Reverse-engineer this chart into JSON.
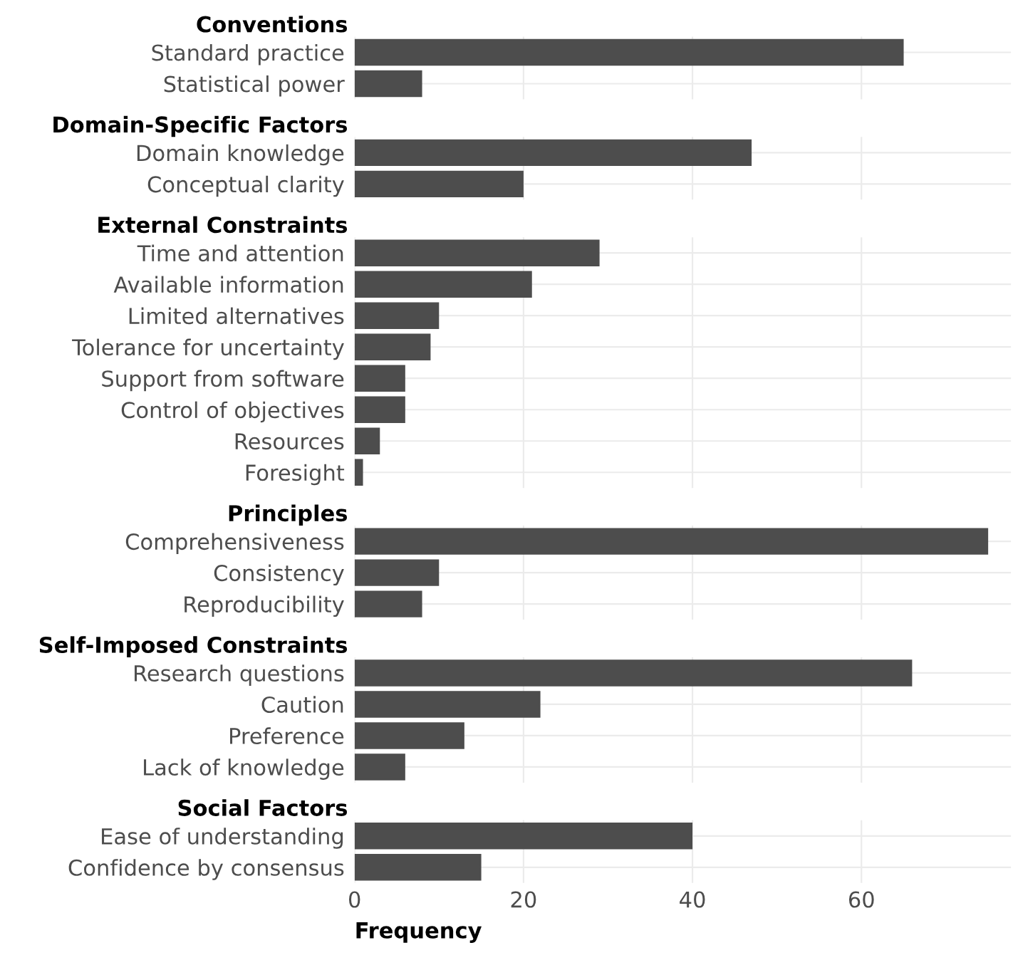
{
  "chart_data": [
    {
      "type": "bar",
      "orientation": "horizontal",
      "title": "Conventions",
      "categories": [
        "Standard practice",
        "Statistical power"
      ],
      "values": [
        65,
        8
      ],
      "color": "#4d4d4d",
      "xlim": [
        0,
        77.7
      ],
      "xticks": [
        0,
        20,
        40,
        60
      ],
      "grid": true,
      "tick_labels": "y"
    },
    {
      "type": "bar",
      "orientation": "horizontal",
      "title": "Domain-Specific Factors",
      "categories": [
        "Domain knowledge",
        "Conceptual clarity"
      ],
      "values": [
        47,
        20
      ],
      "color": "#4d4d4d",
      "xlim": [
        0,
        77.7
      ],
      "xticks": [
        0,
        20,
        40,
        60
      ],
      "grid": true,
      "tick_labels": "y"
    },
    {
      "type": "bar",
      "orientation": "horizontal",
      "title": "External Constraints",
      "categories": [
        "Time and attention",
        "Available information",
        "Limited alternatives",
        "Tolerance for uncertainty",
        "Support from software",
        "Control of objectives",
        "Resources",
        "Foresight"
      ],
      "values": [
        29,
        21,
        10,
        9,
        6,
        6,
        3,
        1
      ],
      "color": "#4d4d4d",
      "xlim": [
        0,
        77.7
      ],
      "xticks": [
        0,
        20,
        40,
        60
      ],
      "grid": true,
      "tick_labels": "y"
    },
    {
      "type": "bar",
      "orientation": "horizontal",
      "title": "Principles",
      "categories": [
        "Comprehensiveness",
        "Consistency",
        "Reproducibility"
      ],
      "values": [
        75,
        10,
        8
      ],
      "color": "#4d4d4d",
      "xlim": [
        0,
        77.7
      ],
      "xticks": [
        0,
        20,
        40,
        60
      ],
      "grid": true,
      "tick_labels": "y"
    },
    {
      "type": "bar",
      "orientation": "horizontal",
      "title": "Self-Imposed Constraints",
      "categories": [
        "Research questions",
        "Caution",
        "Preference",
        "Lack of knowledge"
      ],
      "values": [
        66,
        22,
        13,
        6
      ],
      "color": "#4d4d4d",
      "xlim": [
        0,
        77.7
      ],
      "xticks": [
        0,
        20,
        40,
        60
      ],
      "grid": true,
      "tick_labels": "y"
    },
    {
      "type": "bar",
      "orientation": "horizontal",
      "title": "Social Factors",
      "categories": [
        "Ease of understanding",
        "Confidence by consensus"
      ],
      "values": [
        40,
        15
      ],
      "color": "#4d4d4d",
      "xlim": [
        0,
        77.7
      ],
      "xticks": [
        0,
        20,
        40,
        60
      ],
      "grid": true,
      "xlabel": "Frequency"
    }
  ]
}
